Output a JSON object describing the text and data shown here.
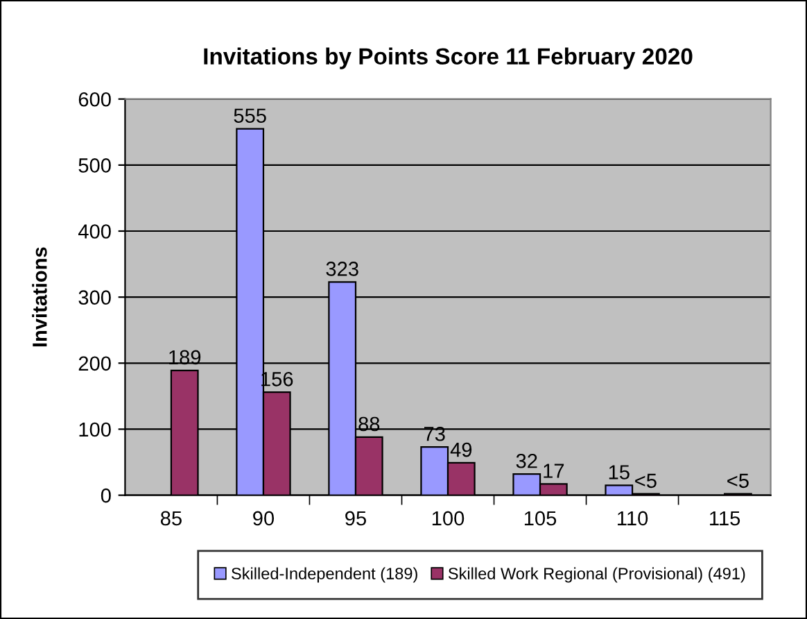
{
  "chart_data": {
    "type": "bar",
    "title": "Invitations by Points Score 11 February 2020",
    "ylabel": "Invitations",
    "categories": [
      "85",
      "90",
      "95",
      "100",
      "105",
      "110",
      "115"
    ],
    "series": [
      {
        "name": "Skilled-Independent (189)",
        "color": "#9999ff",
        "values": [
          null,
          555,
          323,
          73,
          32,
          15,
          null
        ],
        "value_labels": [
          null,
          "555",
          "323",
          "73",
          "32",
          "15",
          null
        ]
      },
      {
        "name": "Skilled Work Regional (Provisional) (491)",
        "color": "#993366",
        "values": [
          189,
          156,
          88,
          49,
          17,
          2,
          2
        ],
        "value_labels": [
          "189",
          "156",
          "88",
          "49",
          "17",
          "<5",
          "<5"
        ]
      }
    ],
    "ylim": [
      0,
      600
    ],
    "yticks": [
      0,
      100,
      200,
      300,
      400,
      500,
      600
    ],
    "grid": "y",
    "legend": "bottom"
  }
}
